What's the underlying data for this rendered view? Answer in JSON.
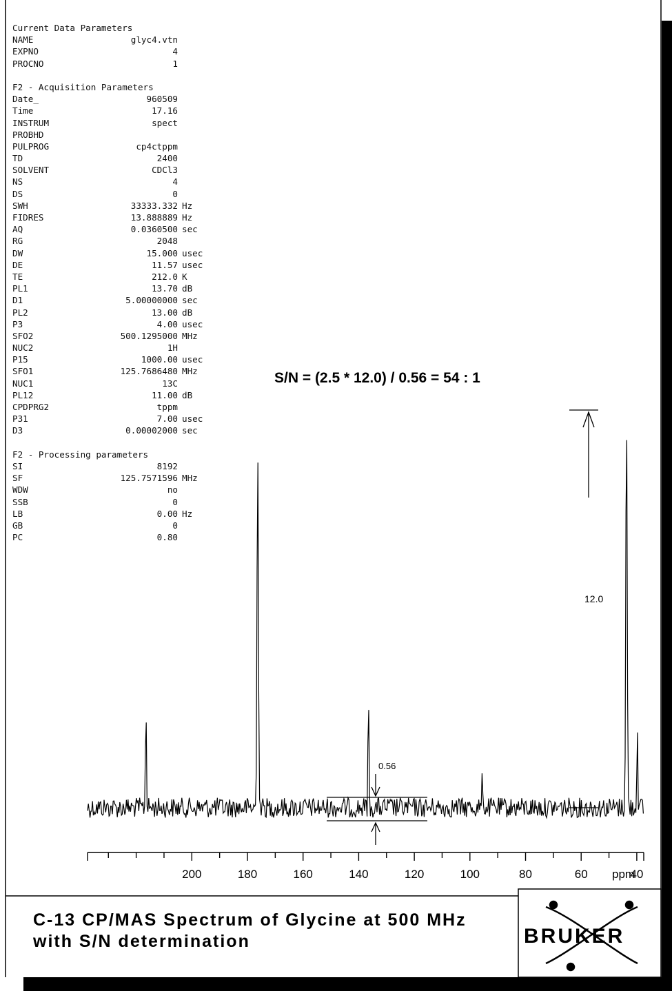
{
  "params": {
    "blocks": [
      {
        "header": "Current Data Parameters",
        "rows": [
          {
            "key": "NAME",
            "value": "glyc4.vtn",
            "unit": ""
          },
          {
            "key": "EXPNO",
            "value": "4",
            "unit": ""
          },
          {
            "key": "PROCNO",
            "value": "1",
            "unit": ""
          }
        ]
      },
      {
        "header": "F2 - Acquisition Parameters",
        "rows": [
          {
            "key": "Date_",
            "value": "960509",
            "unit": ""
          },
          {
            "key": "Time",
            "value": "17.16",
            "unit": ""
          },
          {
            "key": "INSTRUM",
            "value": "spect",
            "unit": ""
          },
          {
            "key": "PROBHD",
            "value": "",
            "unit": ""
          },
          {
            "key": "PULPROG",
            "value": "cp4ctppm",
            "unit": ""
          },
          {
            "key": "TD",
            "value": "2400",
            "unit": ""
          },
          {
            "key": "SOLVENT",
            "value": "CDCl3",
            "unit": ""
          },
          {
            "key": "NS",
            "value": "4",
            "unit": ""
          },
          {
            "key": "DS",
            "value": "0",
            "unit": ""
          },
          {
            "key": "SWH",
            "value": "33333.332",
            "unit": "Hz"
          },
          {
            "key": "FIDRES",
            "value": "13.888889",
            "unit": "Hz"
          },
          {
            "key": "AQ",
            "value": "0.0360500",
            "unit": "sec"
          },
          {
            "key": "RG",
            "value": "2048",
            "unit": ""
          },
          {
            "key": "DW",
            "value": "15.000",
            "unit": "usec"
          },
          {
            "key": "DE",
            "value": "11.57",
            "unit": "usec"
          },
          {
            "key": "TE",
            "value": "212.0",
            "unit": "K"
          },
          {
            "key": "PL1",
            "value": "13.70",
            "unit": "dB"
          },
          {
            "key": "D1",
            "value": "5.00000000",
            "unit": "sec"
          },
          {
            "key": "PL2",
            "value": "13.00",
            "unit": "dB"
          },
          {
            "key": "P3",
            "value": "4.00",
            "unit": "usec"
          },
          {
            "key": "SFO2",
            "value": "500.1295000",
            "unit": "MHz"
          },
          {
            "key": "NUC2",
            "value": "1H",
            "unit": ""
          },
          {
            "key": "P15",
            "value": "1000.00",
            "unit": "usec"
          },
          {
            "key": "SFO1",
            "value": "125.7686480",
            "unit": "MHz"
          },
          {
            "key": "NUC1",
            "value": "13C",
            "unit": ""
          },
          {
            "key": "PL12",
            "value": "11.00",
            "unit": "dB"
          },
          {
            "key": "CPDPRG2",
            "value": "tppm",
            "unit": ""
          },
          {
            "key": "P31",
            "value": "7.00",
            "unit": "usec"
          },
          {
            "key": "D3",
            "value": "0.00002000",
            "unit": "sec"
          }
        ]
      },
      {
        "header": "F2 - Processing parameters",
        "rows": [
          {
            "key": "SI",
            "value": "8192",
            "unit": ""
          },
          {
            "key": "SF",
            "value": "125.7571596",
            "unit": "MHz"
          },
          {
            "key": "WDW",
            "value": "no",
            "unit": ""
          },
          {
            "key": "SSB",
            "value": "0",
            "unit": ""
          },
          {
            "key": "LB",
            "value": "0.00",
            "unit": "Hz"
          },
          {
            "key": "GB",
            "value": "0",
            "unit": ""
          },
          {
            "key": "PC",
            "value": "0.80",
            "unit": ""
          }
        ]
      }
    ]
  },
  "annotations": {
    "sn_formula": "S/N = (2.5 * 12.0) / 0.56 = 54 : 1",
    "signal_label": "12.0",
    "noise_label": "0.56"
  },
  "caption": {
    "line1": "C-13 CP/MAS Spectrum of Glycine at 500 MHz",
    "line2": "with S/N determination"
  },
  "logo": {
    "text": "BRUKER"
  },
  "chart_data": {
    "type": "line",
    "xlabel": "",
    "x_unit_label": "ppm",
    "x_reversed": true,
    "xlim": [
      237.5,
      37.5
    ],
    "ylim": [
      -0.05,
      1.0
    ],
    "x_ticks": [
      200,
      180,
      160,
      140,
      120,
      100,
      80,
      60,
      40
    ],
    "x_tick_labels": [
      "200",
      "180",
      "160",
      "140",
      "120",
      "100",
      "80",
      "60",
      "40"
    ],
    "peaks": [
      {
        "ppm": 216.5,
        "height": 0.305
      },
      {
        "ppm": 176.3,
        "height": 0.92
      },
      {
        "ppm": 136.5,
        "height": 0.32
      },
      {
        "ppm": 95.5,
        "height": 0.095
      },
      {
        "ppm": 43.7,
        "height": 1.0
      },
      {
        "ppm": 39.8,
        "height": 0.235
      }
    ],
    "noise_peak_to_peak": 0.056,
    "signal_height": 12.0,
    "noise_value": 0.56,
    "signal_to_noise": "54 : 1"
  }
}
